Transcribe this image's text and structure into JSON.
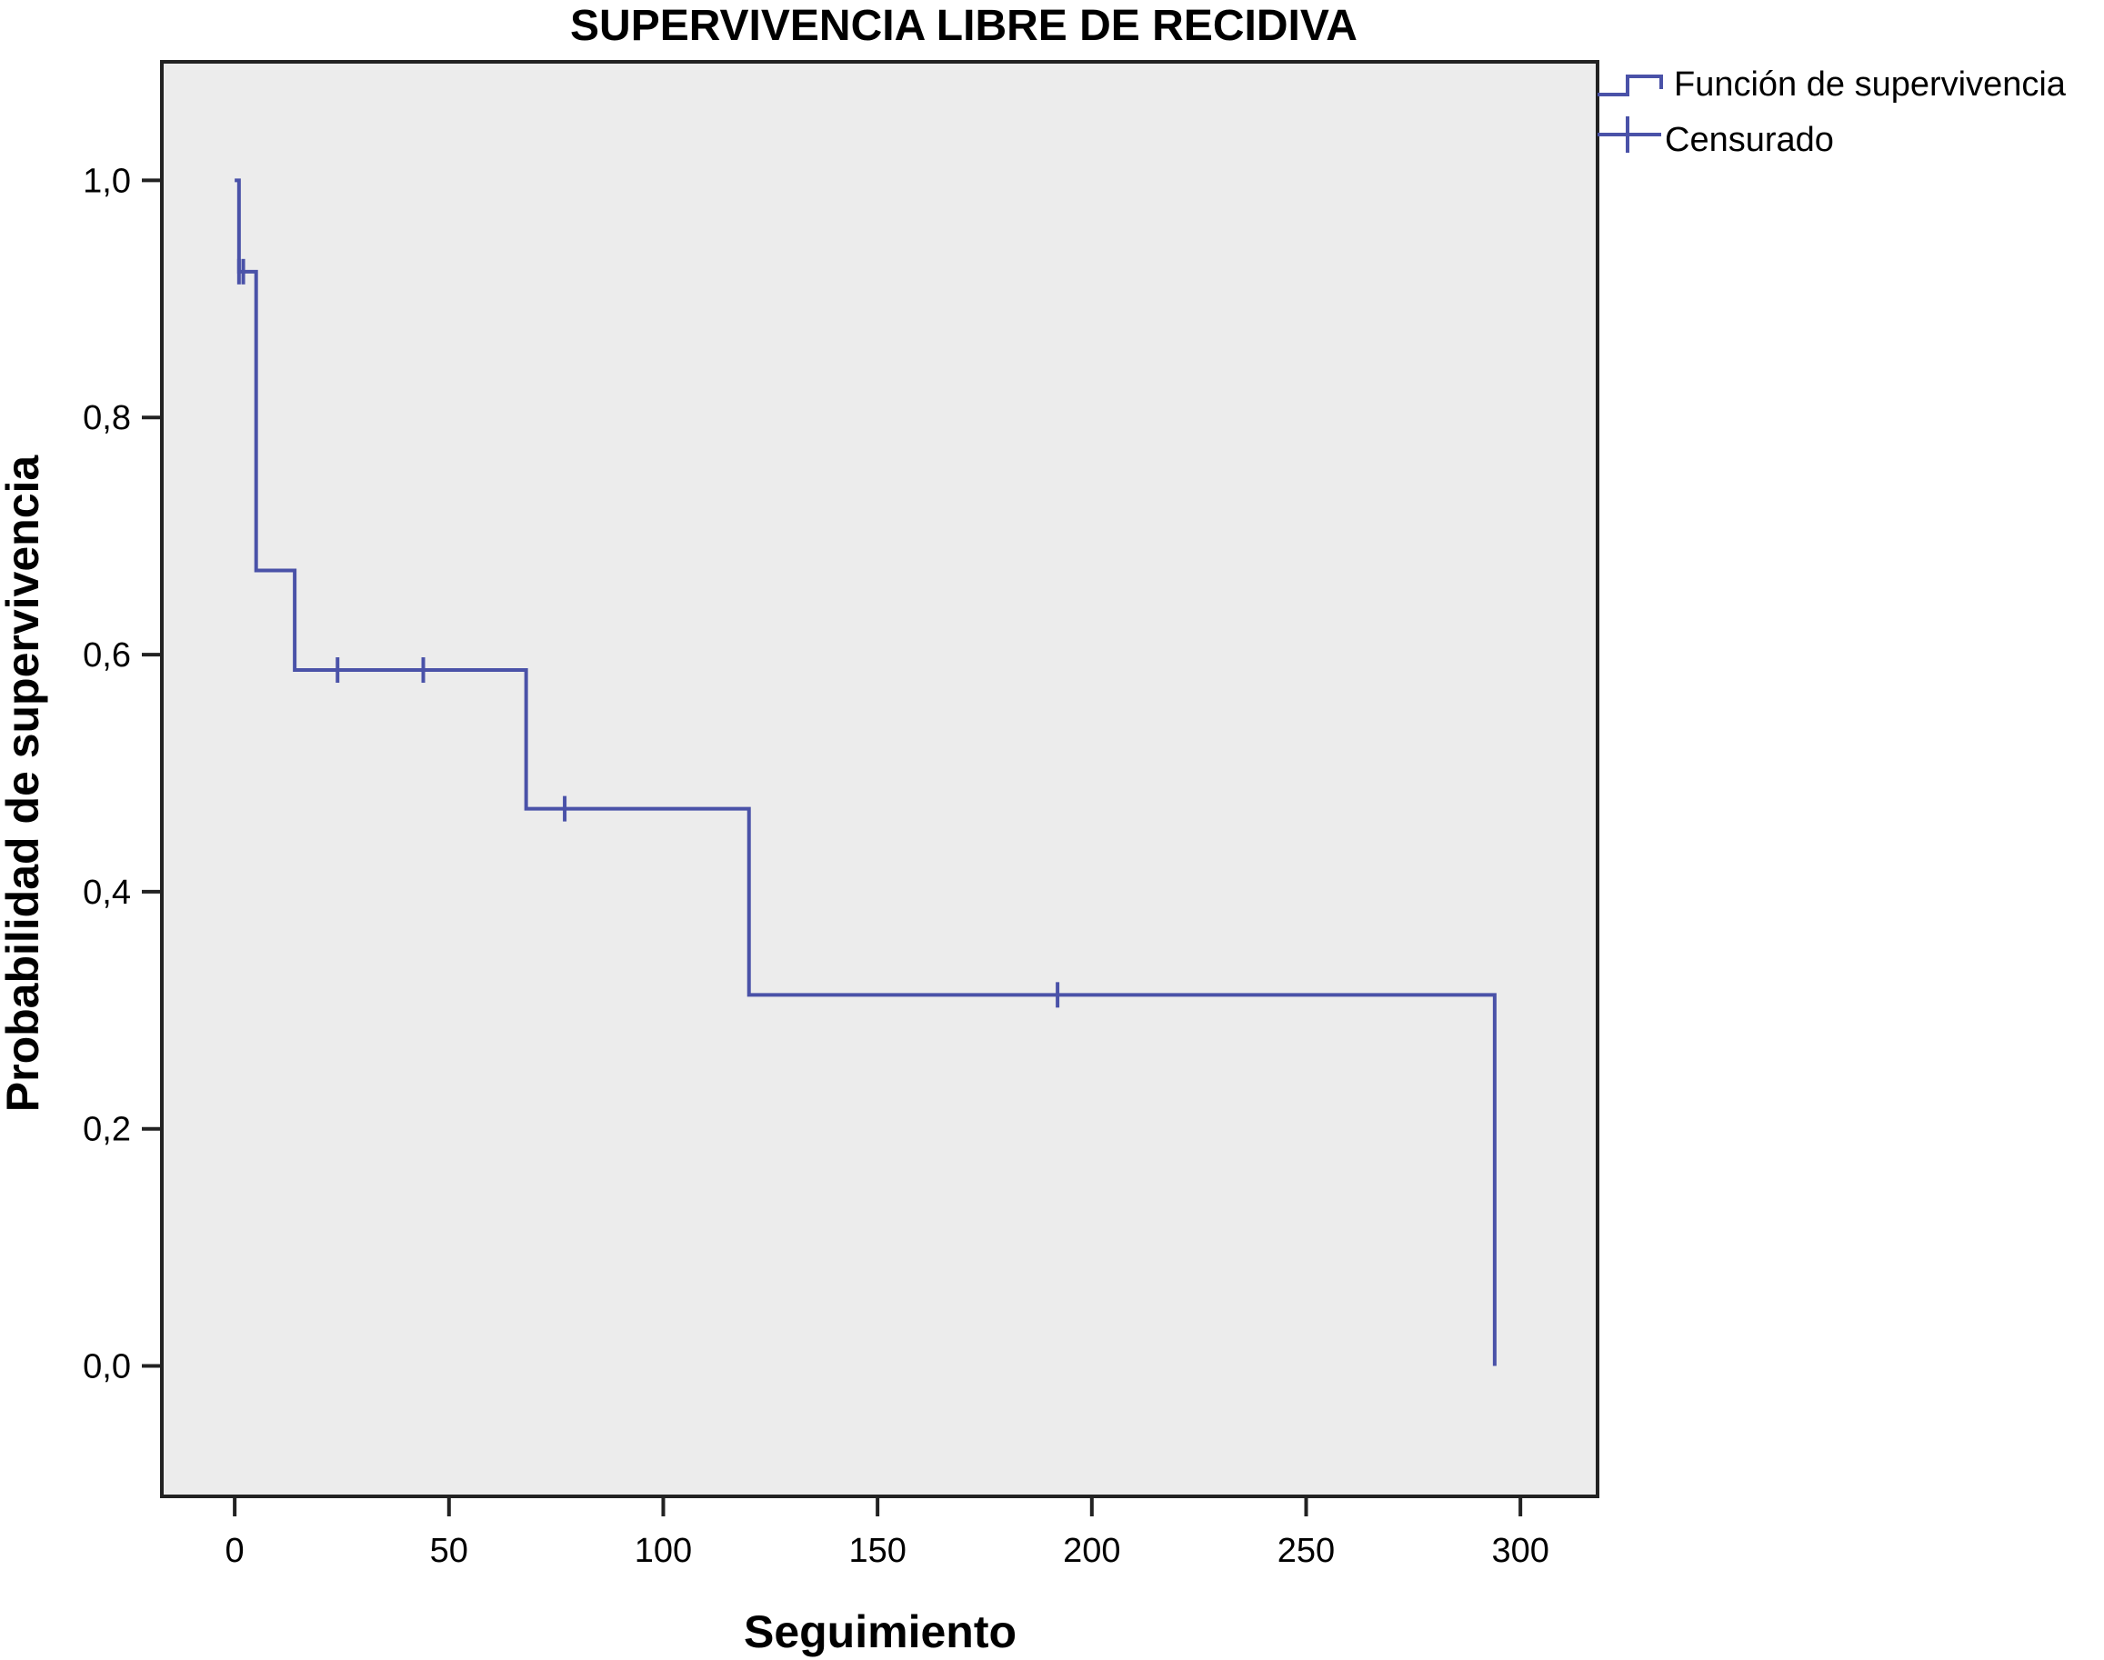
{
  "chart_data": {
    "type": "line",
    "title": "SUPERVIVENCIA LIBRE DE RECIDIVA",
    "xlabel": "Seguimiento",
    "ylabel": "Probabilidad de supervivencia",
    "xlim": [
      -17,
      318
    ],
    "ylim": [
      -0.11,
      1.1
    ],
    "x_ticks": [
      0,
      50,
      100,
      150,
      200,
      250,
      300
    ],
    "y_ticks": [
      0.0,
      0.2,
      0.4,
      0.6,
      0.8,
      1.0
    ],
    "x_tick_labels": [
      "0",
      "50",
      "100",
      "150",
      "200",
      "250",
      "300"
    ],
    "y_tick_labels": [
      "0,0",
      "0,2",
      "0,4",
      "0,6",
      "0,8",
      "1,0"
    ],
    "grid": false,
    "legend_position": "outside-top-right",
    "series": [
      {
        "name": "Función de supervivencia",
        "step": true,
        "x": [
          0,
          1,
          5,
          14,
          68,
          120,
          294,
          294
        ],
        "y": [
          1.0,
          0.923,
          0.671,
          0.587,
          0.47,
          0.313,
          0.313,
          0.0
        ]
      }
    ],
    "censored": {
      "name": "Censurado",
      "x": [
        1,
        2,
        24,
        44,
        77,
        192
      ],
      "y": [
        0.923,
        0.923,
        0.587,
        0.587,
        0.47,
        0.313
      ]
    },
    "colors": {
      "line": "#4a52a8",
      "plot_background": "#ececec",
      "axis": "#222222"
    }
  }
}
